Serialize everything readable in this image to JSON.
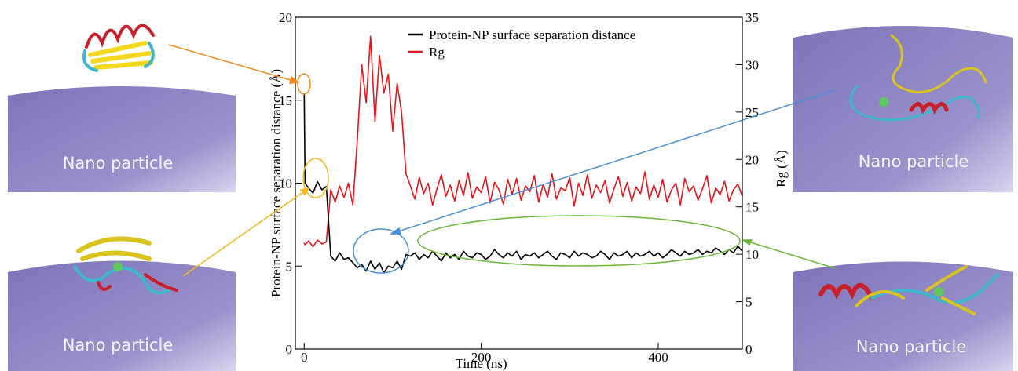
{
  "chart_data": {
    "type": "line",
    "x_label": "Time (ns)",
    "y_label": "Protein-NP surface separation distance (Å)",
    "y2_label": "Rg (Å)",
    "xlim": [
      -10,
      495
    ],
    "xticks": [
      0,
      200,
      400
    ],
    "ylim": [
      0,
      20
    ],
    "yticks": [
      0,
      5,
      10,
      15,
      20
    ],
    "y2lim": [
      0,
      35
    ],
    "y2ticks": [
      0,
      5,
      10,
      15,
      20,
      25,
      30,
      35
    ],
    "legend": "upper center",
    "x": [
      0,
      1,
      5,
      10,
      15,
      20,
      25,
      30,
      35,
      40,
      45,
      50,
      55,
      60,
      65,
      70,
      75,
      80,
      85,
      90,
      95,
      100,
      105,
      110,
      115,
      120,
      125,
      130,
      135,
      140,
      145,
      150,
      155,
      160,
      165,
      170,
      175,
      180,
      185,
      190,
      195,
      200,
      205,
      210,
      215,
      220,
      225,
      230,
      235,
      240,
      245,
      250,
      255,
      260,
      265,
      270,
      275,
      280,
      285,
      290,
      295,
      300,
      305,
      310,
      315,
      320,
      325,
      330,
      335,
      340,
      345,
      350,
      355,
      360,
      365,
      370,
      375,
      380,
      385,
      390,
      395,
      400,
      405,
      410,
      415,
      420,
      425,
      430,
      435,
      440,
      445,
      450,
      455,
      460,
      465,
      470,
      475,
      480,
      485,
      490,
      495
    ],
    "series": [
      {
        "name": "Protein-NP surface separation distance",
        "color": "#000000",
        "values": [
          15.4,
          10.0,
          9.7,
          9.4,
          10.1,
          9.6,
          9.8,
          5.6,
          5.3,
          5.8,
          5.4,
          5.5,
          5.2,
          4.9,
          5.1,
          4.7,
          5.3,
          4.8,
          5.2,
          4.6,
          5.0,
          4.9,
          5.3,
          4.8,
          5.7,
          5.6,
          5.8,
          5.4,
          5.7,
          5.5,
          5.9,
          5.6,
          5.3,
          5.8,
          5.5,
          5.7,
          5.4,
          5.9,
          5.6,
          5.5,
          5.8,
          5.7,
          5.4,
          5.6,
          6.0,
          5.7,
          5.5,
          5.8,
          5.6,
          5.9,
          5.4,
          5.7,
          5.6,
          5.8,
          5.5,
          5.7,
          5.9,
          5.6,
          5.4,
          5.8,
          5.7,
          5.5,
          5.9,
          5.6,
          5.8,
          5.7,
          5.5,
          5.6,
          5.9,
          5.7,
          5.4,
          5.8,
          5.6,
          5.7,
          5.9,
          5.5,
          5.8,
          5.6,
          5.7,
          5.9,
          5.6,
          5.8,
          5.5,
          5.7,
          6.0,
          5.8,
          5.6,
          5.9,
          5.7,
          5.8,
          6.0,
          5.7,
          5.9,
          5.8,
          6.1,
          5.9,
          5.7,
          6.0,
          5.8,
          6.2,
          5.9
        ]
      },
      {
        "name": "Rg",
        "color": "#e8141b",
        "axis": "y2",
        "values": [
          11.2,
          11.0,
          11.4,
          10.8,
          11.5,
          11.1,
          11.3,
          16.8,
          15.5,
          17.2,
          16.0,
          17.5,
          15.2,
          22.0,
          30.0,
          26.0,
          33.0,
          24.0,
          31.0,
          27.0,
          29.0,
          23.0,
          28.0,
          25.0,
          18.5,
          17.2,
          15.8,
          18.1,
          16.4,
          17.5,
          15.2,
          16.9,
          18.4,
          16.1,
          17.3,
          15.6,
          17.8,
          16.2,
          18.6,
          15.9,
          17.1,
          16.5,
          18.2,
          15.4,
          17.6,
          16.8,
          15.3,
          17.9,
          16.3,
          18.0,
          15.7,
          17.2,
          16.6,
          18.3,
          15.5,
          17.4,
          16.0,
          18.5,
          15.8,
          17.0,
          16.7,
          18.1,
          15.1,
          17.5,
          16.2,
          18.4,
          15.9,
          17.3,
          16.5,
          17.8,
          15.4,
          16.9,
          18.2,
          16.1,
          17.6,
          15.6,
          17.1,
          16.4,
          18.7,
          15.8,
          17.3,
          16.0,
          17.9,
          15.5,
          16.8,
          17.5,
          15.2,
          18.0,
          16.6,
          17.2,
          15.7,
          16.9,
          18.3,
          15.4,
          17.0,
          16.3,
          17.7,
          15.6,
          16.8,
          17.4,
          16.1
        ]
      }
    ]
  },
  "illustrations": [
    {
      "label": "Nano particle"
    },
    {
      "label": "Nano particle"
    },
    {
      "label": "Nano particle"
    },
    {
      "label": "Nano particle"
    }
  ]
}
